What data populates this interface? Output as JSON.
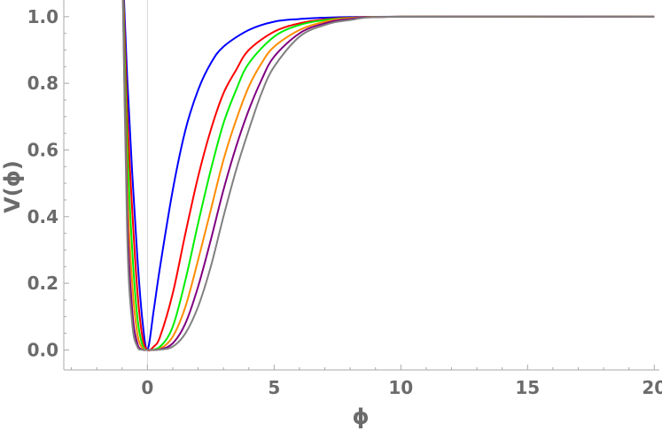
{
  "chart_data": {
    "type": "line",
    "title": "",
    "xlabel": "ϕ",
    "ylabel": "V(ϕ)",
    "xlim": [
      -3.3,
      20.2
    ],
    "ylim": [
      -0.06,
      1.05
    ],
    "x_ticks": [
      0,
      5,
      10,
      15,
      20
    ],
    "x_tick_labels": [
      "0",
      "5",
      "10",
      "15",
      "20"
    ],
    "y_ticks": [
      0.0,
      0.2,
      0.4,
      0.6,
      0.8,
      1.0
    ],
    "y_tick_labels": [
      "0.0",
      "0.2",
      "0.4",
      "0.6",
      "0.8",
      "1.0"
    ],
    "grid": false,
    "legend": "none",
    "series": [
      {
        "color": "#0000ff",
        "x": [
          -1.0,
          -0.8,
          -0.6,
          -0.4,
          -0.2,
          0,
          0.25,
          0.5,
          1,
          1.5,
          2,
          2.5,
          3,
          4,
          5,
          6,
          7,
          8,
          10,
          20
        ],
        "y": [
          1.2,
          0.82,
          0.53,
          0.28,
          0.09,
          0,
          0.12,
          0.25,
          0.48,
          0.66,
          0.78,
          0.86,
          0.91,
          0.96,
          0.985,
          0.993,
          0.997,
          0.999,
          1.0,
          1.0
        ]
      },
      {
        "color": "#ff0000",
        "x": [
          -1.0,
          -0.8,
          -0.6,
          -0.4,
          -0.2,
          0,
          0.25,
          0.5,
          1,
          1.5,
          2,
          2.5,
          3,
          3.5,
          4,
          5,
          6,
          7,
          8,
          10,
          20
        ],
        "y": [
          1.2,
          0.72,
          0.42,
          0.18,
          0.04,
          0,
          0.01,
          0.04,
          0.17,
          0.35,
          0.52,
          0.66,
          0.77,
          0.84,
          0.9,
          0.955,
          0.98,
          0.992,
          0.997,
          1.0,
          1.0
        ]
      },
      {
        "color": "#00ee00",
        "x": [
          -1.0,
          -0.8,
          -0.6,
          -0.4,
          -0.2,
          0,
          0.5,
          1,
          1.5,
          2,
          2.5,
          3,
          3.5,
          4,
          5,
          6,
          7,
          8,
          10,
          20
        ],
        "y": [
          1.2,
          0.62,
          0.3,
          0.1,
          0.015,
          0,
          0.01,
          0.07,
          0.21,
          0.38,
          0.54,
          0.68,
          0.78,
          0.86,
          0.94,
          0.975,
          0.99,
          0.996,
          1.0,
          1.0
        ]
      },
      {
        "color": "#ff8c00",
        "x": [
          -1.0,
          -0.8,
          -0.6,
          -0.4,
          -0.2,
          0,
          0.5,
          1,
          1.5,
          2,
          2.5,
          3,
          3.5,
          4,
          4.5,
          5,
          6,
          7,
          8,
          10,
          20
        ],
        "y": [
          1.2,
          0.5,
          0.2,
          0.05,
          0.005,
          0,
          0.004,
          0.04,
          0.13,
          0.27,
          0.42,
          0.57,
          0.69,
          0.79,
          0.86,
          0.91,
          0.96,
          0.985,
          0.995,
          1.0,
          1.0
        ]
      },
      {
        "color": "#800080",
        "x": [
          -1.0,
          -0.8,
          -0.6,
          -0.4,
          -0.2,
          0,
          0.5,
          1,
          1.5,
          2,
          2.5,
          3,
          3.5,
          4,
          4.5,
          5,
          6,
          7,
          8,
          10,
          20
        ],
        "y": [
          1.2,
          0.42,
          0.12,
          0.02,
          0.001,
          0,
          0.002,
          0.02,
          0.08,
          0.19,
          0.33,
          0.48,
          0.61,
          0.72,
          0.81,
          0.88,
          0.95,
          0.98,
          0.993,
          1.0,
          1.0
        ]
      },
      {
        "color": "#808080",
        "x": [
          -1.0,
          -0.8,
          -0.6,
          -0.4,
          -0.2,
          0,
          0.5,
          1,
          1.5,
          2,
          2.5,
          3,
          3.5,
          4,
          4.5,
          5,
          6,
          7,
          8,
          10,
          20
        ],
        "y": [
          1.2,
          0.35,
          0.08,
          0.01,
          0.0005,
          0,
          0.001,
          0.01,
          0.05,
          0.13,
          0.25,
          0.4,
          0.54,
          0.66,
          0.77,
          0.85,
          0.94,
          0.975,
          0.99,
          1.0,
          1.0
        ]
      }
    ]
  }
}
